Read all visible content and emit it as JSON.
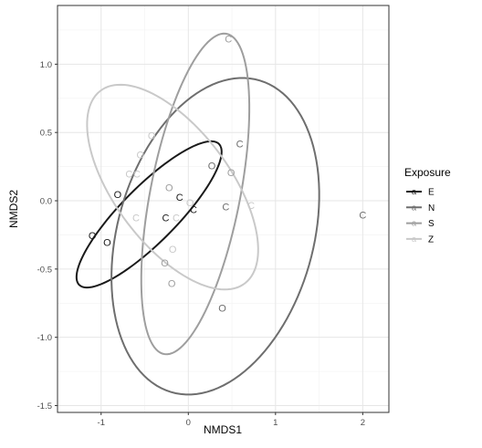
{
  "chart_data": {
    "type": "scatter",
    "xlabel": "NMDS1",
    "ylabel": "NMDS2",
    "xlim": [
      -1.5,
      2.3
    ],
    "ylim": [
      -1.55,
      1.43
    ],
    "x_ticks": [
      -1,
      0,
      1,
      2
    ],
    "y_ticks": [
      -1.5,
      -1.0,
      -0.5,
      0.0,
      0.5,
      1.0
    ],
    "x_tick_labels": [
      "-1",
      "0",
      "1",
      "2"
    ],
    "y_tick_labels": [
      "-1.5",
      "-1.0",
      "-0.5",
      "0.0",
      "0.5",
      "1.0"
    ],
    "grid": true,
    "theme": "bw",
    "legend": {
      "title": "Exposure",
      "position": "right",
      "items": [
        {
          "label": "E",
          "color": "#1a1a1a"
        },
        {
          "label": "N",
          "color": "#6e6e6e"
        },
        {
          "label": "S",
          "color": "#9e9e9e"
        },
        {
          "label": "Z",
          "color": "#c9c9c9"
        }
      ]
    },
    "series": [
      {
        "name": "E",
        "color": "#1a1a1a",
        "points": [
          {
            "x": -1.1,
            "y": -0.26,
            "label": "O"
          },
          {
            "x": -0.93,
            "y": -0.31,
            "label": "O"
          },
          {
            "x": -0.81,
            "y": 0.04,
            "label": "O"
          },
          {
            "x": -0.26,
            "y": -0.13,
            "label": "C"
          },
          {
            "x": -0.1,
            "y": 0.02,
            "label": "C"
          },
          {
            "x": 0.06,
            "y": -0.07,
            "label": "C"
          }
        ],
        "ellipse": {
          "cx": -0.45,
          "cy": -0.1,
          "rx": 0.96,
          "ry": 0.24,
          "angle_deg": 31
        }
      },
      {
        "name": "N",
        "color": "#6e6e6e",
        "points": [
          {
            "x": 0.27,
            "y": 0.25,
            "label": "O"
          },
          {
            "x": 0.59,
            "y": 0.41,
            "label": "C"
          },
          {
            "x": 0.43,
            "y": -0.05,
            "label": "C"
          },
          {
            "x": 2.0,
            "y": -0.11,
            "label": "C"
          },
          {
            "x": 0.39,
            "y": -0.79,
            "label": "O"
          }
        ],
        "ellipse": {
          "cx": 0.31,
          "cy": -0.26,
          "rx": 1.32,
          "ry": 1.01,
          "angle_deg": 42
        }
      },
      {
        "name": "S",
        "color": "#9e9e9e",
        "points": [
          {
            "x": 0.46,
            "y": 1.18,
            "label": "C"
          },
          {
            "x": 0.49,
            "y": 0.2,
            "label": "O"
          },
          {
            "x": -0.22,
            "y": 0.09,
            "label": "O"
          },
          {
            "x": -0.27,
            "y": -0.46,
            "label": "O"
          },
          {
            "x": -0.19,
            "y": -0.61,
            "label": "O"
          }
        ],
        "ellipse": {
          "cx": 0.08,
          "cy": 0.05,
          "rx": 1.23,
          "ry": 0.5,
          "angle_deg": 71
        }
      },
      {
        "name": "Z",
        "color": "#c9c9c9",
        "points": [
          {
            "x": -0.42,
            "y": 0.47,
            "label": "O"
          },
          {
            "x": -0.55,
            "y": 0.33,
            "label": "O"
          },
          {
            "x": -0.68,
            "y": 0.19,
            "label": "C"
          },
          {
            "x": -0.59,
            "y": 0.19,
            "label": "C"
          },
          {
            "x": -0.6,
            "y": -0.13,
            "label": "C"
          },
          {
            "x": -0.14,
            "y": -0.13,
            "label": "C"
          },
          {
            "x": 0.02,
            "y": -0.02,
            "label": "O"
          },
          {
            "x": -0.18,
            "y": -0.36,
            "label": "O"
          },
          {
            "x": 0.72,
            "y": -0.04,
            "label": "C"
          }
        ],
        "ellipse": {
          "cx": -0.18,
          "cy": 0.1,
          "rx": 1.12,
          "ry": 0.52,
          "angle_deg": -33
        }
      }
    ]
  }
}
